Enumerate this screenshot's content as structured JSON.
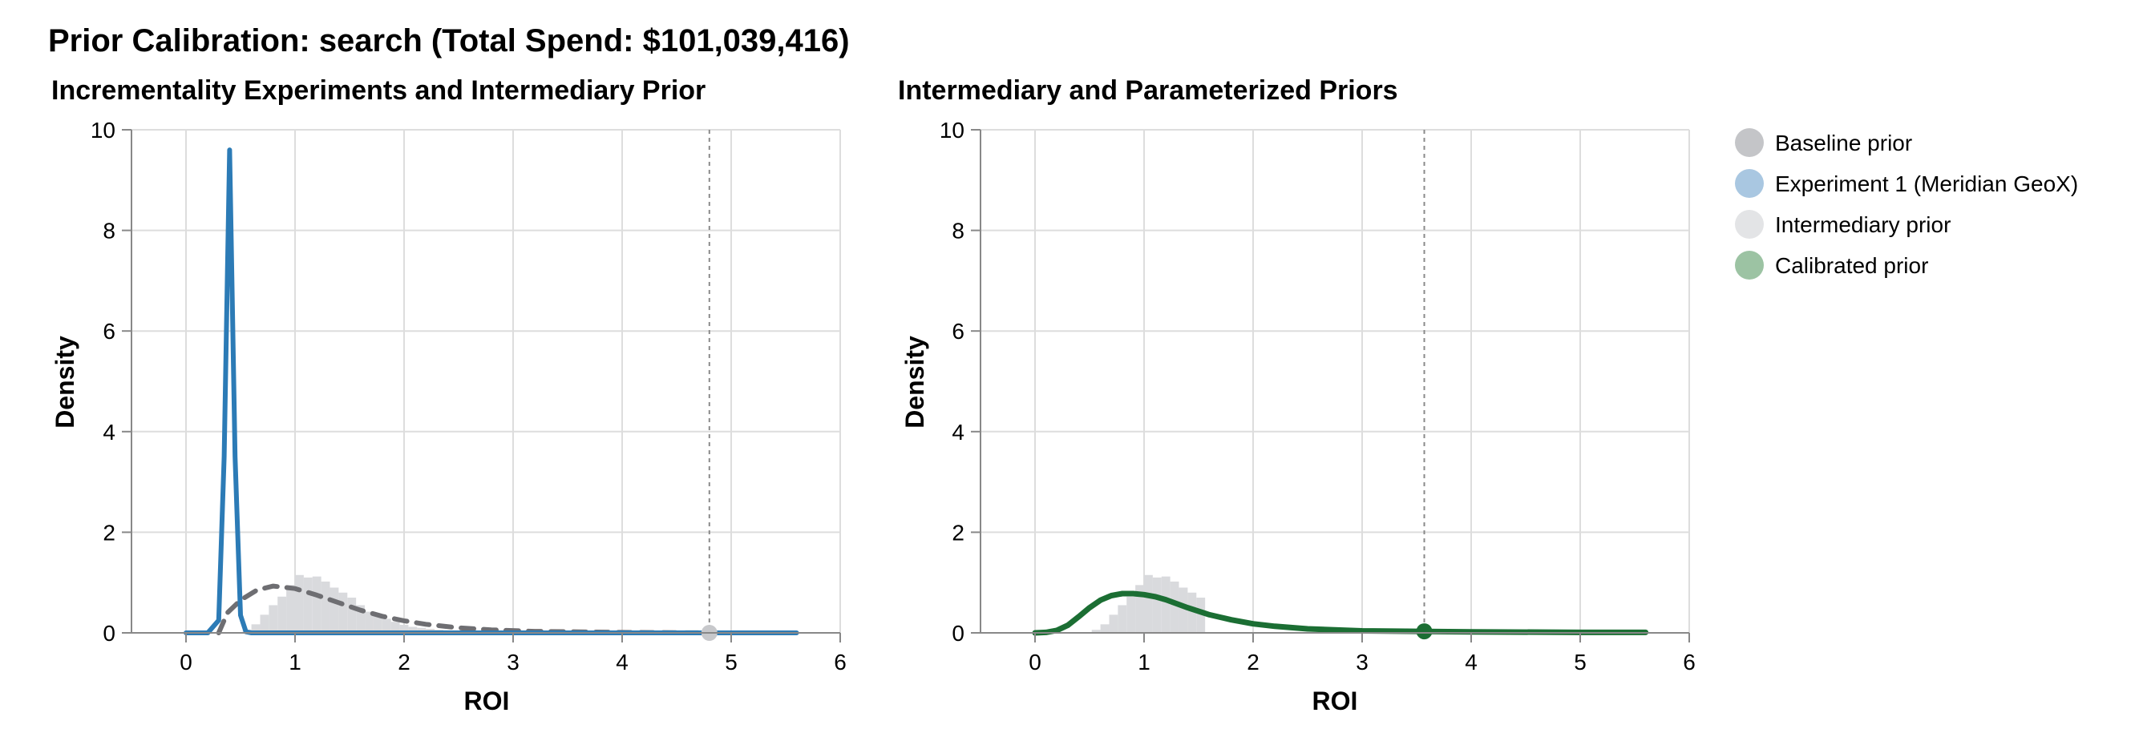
{
  "page": {
    "title": "Prior Calibration: search (Total Spend: $101,039,416)"
  },
  "colors": {
    "baseline": "#c7c8cb",
    "experiment": "#2c7bb6",
    "experiment_legend": "#a9c7e1",
    "intermediary_fill": "#d9dadd",
    "intermediary_legend": "#e3e4e6",
    "intermediary_line": "#6e6e72",
    "calibrated": "#1b6e33",
    "calibrated_legend": "#9cc3a3",
    "grid": "#dddddd",
    "rule": "#8a8a8a"
  },
  "legend": {
    "items": [
      {
        "label": "Baseline prior",
        "color": "#c4c5c8"
      },
      {
        "label": "Experiment 1 (Meridian GeoX)",
        "color": "#a9c7e1"
      },
      {
        "label": "Intermediary prior",
        "color": "#e3e4e6"
      },
      {
        "label": "Calibrated prior",
        "color": "#9cc3a3"
      }
    ]
  },
  "chart_data": [
    {
      "type": "line",
      "title": "Incrementality Experiments and Intermediary Prior",
      "xlabel": "ROI",
      "ylabel": "Density",
      "xlim": [
        -0.5,
        6
      ],
      "ylim": [
        0,
        10
      ],
      "xticks": [
        "0",
        "1",
        "2",
        "3",
        "4",
        "5",
        "6"
      ],
      "yticks": [
        "0",
        "2",
        "4",
        "6",
        "8",
        "10"
      ],
      "grid": true,
      "histogram": {
        "name": "Intermediary prior",
        "bin_width": 0.08,
        "bins": [
          {
            "x": 0.56,
            "y": 0.06
          },
          {
            "x": 0.64,
            "y": 0.17
          },
          {
            "x": 0.72,
            "y": 0.36
          },
          {
            "x": 0.8,
            "y": 0.55
          },
          {
            "x": 0.88,
            "y": 0.72
          },
          {
            "x": 0.96,
            "y": 0.95
          },
          {
            "x": 1.04,
            "y": 1.15
          },
          {
            "x": 1.12,
            "y": 1.1
          },
          {
            "x": 1.2,
            "y": 1.12
          },
          {
            "x": 1.28,
            "y": 1.02
          },
          {
            "x": 1.36,
            "y": 0.9
          },
          {
            "x": 1.44,
            "y": 0.8
          },
          {
            "x": 1.52,
            "y": 0.7
          },
          {
            "x": 1.6,
            "y": 0.55
          },
          {
            "x": 1.68,
            "y": 0.42
          },
          {
            "x": 1.76,
            "y": 0.34
          },
          {
            "x": 1.84,
            "y": 0.28
          },
          {
            "x": 1.92,
            "y": 0.22
          },
          {
            "x": 2.0,
            "y": 0.16
          },
          {
            "x": 2.08,
            "y": 0.12
          },
          {
            "x": 2.16,
            "y": 0.1
          },
          {
            "x": 2.24,
            "y": 0.08
          },
          {
            "x": 2.32,
            "y": 0.06
          },
          {
            "x": 2.4,
            "y": 0.05
          },
          {
            "x": 2.48,
            "y": 0.04
          }
        ]
      },
      "series": [
        {
          "name": "Baseline prior",
          "style": "dashed",
          "points": [
            [
              0.3,
              0.0
            ],
            [
              0.38,
              0.4
            ],
            [
              0.5,
              0.65
            ],
            [
              0.65,
              0.85
            ],
            [
              0.8,
              0.93
            ],
            [
              1.0,
              0.88
            ],
            [
              1.2,
              0.75
            ],
            [
              1.4,
              0.6
            ],
            [
              1.6,
              0.45
            ],
            [
              1.8,
              0.33
            ],
            [
              2.0,
              0.24
            ],
            [
              2.2,
              0.17
            ],
            [
              2.5,
              0.1
            ],
            [
              2.8,
              0.06
            ],
            [
              3.2,
              0.03
            ],
            [
              3.6,
              0.02
            ],
            [
              4.0,
              0.01
            ],
            [
              4.8,
              0.0
            ]
          ]
        },
        {
          "name": "Experiment 1 (Meridian GeoX)",
          "style": "solid",
          "points": [
            [
              0.0,
              0.0
            ],
            [
              0.2,
              0.0
            ],
            [
              0.3,
              0.25
            ],
            [
              0.35,
              3.5
            ],
            [
              0.4,
              9.6
            ],
            [
              0.45,
              3.5
            ],
            [
              0.5,
              0.35
            ],
            [
              0.55,
              0.02
            ],
            [
              0.6,
              0.0
            ],
            [
              1.0,
              0.0
            ],
            [
              2.0,
              0.0
            ],
            [
              3.0,
              0.0
            ],
            [
              4.0,
              0.0
            ],
            [
              5.0,
              0.0
            ],
            [
              5.6,
              0.0
            ]
          ]
        }
      ],
      "rule_x": 4.8,
      "marker": {
        "x": 4.8,
        "y": 0.0,
        "series": "Baseline prior"
      }
    },
    {
      "type": "line",
      "title": "Intermediary and Parameterized Priors",
      "xlabel": "ROI",
      "ylabel": "Density",
      "xlim": [
        -0.5,
        6
      ],
      "ylim": [
        0,
        10
      ],
      "xticks": [
        "0",
        "1",
        "2",
        "3",
        "4",
        "5",
        "6"
      ],
      "yticks": [
        "0",
        "2",
        "4",
        "6",
        "8",
        "10"
      ],
      "grid": true,
      "histogram": {
        "name": "Intermediary prior",
        "bin_width": 0.08,
        "bins": [
          {
            "x": 0.56,
            "y": 0.06
          },
          {
            "x": 0.64,
            "y": 0.17
          },
          {
            "x": 0.72,
            "y": 0.36
          },
          {
            "x": 0.8,
            "y": 0.55
          },
          {
            "x": 0.88,
            "y": 0.72
          },
          {
            "x": 0.96,
            "y": 0.95
          },
          {
            "x": 1.04,
            "y": 1.15
          },
          {
            "x": 1.12,
            "y": 1.1
          },
          {
            "x": 1.2,
            "y": 1.12
          },
          {
            "x": 1.28,
            "y": 1.02
          },
          {
            "x": 1.36,
            "y": 0.9
          },
          {
            "x": 1.44,
            "y": 0.8
          },
          {
            "x": 1.52,
            "y": 0.7
          }
        ]
      },
      "series": [
        {
          "name": "Calibrated prior",
          "style": "solid",
          "points": [
            [
              0.0,
              0.0
            ],
            [
              0.1,
              0.01
            ],
            [
              0.2,
              0.05
            ],
            [
              0.3,
              0.15
            ],
            [
              0.4,
              0.32
            ],
            [
              0.5,
              0.5
            ],
            [
              0.6,
              0.65
            ],
            [
              0.7,
              0.74
            ],
            [
              0.8,
              0.78
            ],
            [
              0.9,
              0.78
            ],
            [
              1.0,
              0.76
            ],
            [
              1.1,
              0.72
            ],
            [
              1.2,
              0.66
            ],
            [
              1.3,
              0.58
            ],
            [
              1.4,
              0.5
            ],
            [
              1.6,
              0.36
            ],
            [
              1.8,
              0.26
            ],
            [
              2.0,
              0.18
            ],
            [
              2.2,
              0.13
            ],
            [
              2.5,
              0.08
            ],
            [
              3.0,
              0.04
            ],
            [
              3.5,
              0.03
            ],
            [
              4.0,
              0.02
            ],
            [
              5.0,
              0.01
            ],
            [
              5.6,
              0.01
            ]
          ]
        }
      ],
      "rule_x": 3.57,
      "marker": {
        "x": 3.57,
        "y": 0.03,
        "series": "Calibrated prior"
      }
    }
  ]
}
